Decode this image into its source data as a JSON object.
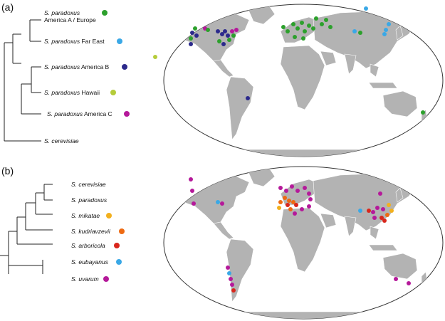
{
  "panel_a": {
    "label": "(a)",
    "taxa": [
      {
        "species": "S. paradoxus",
        "region": "America A / Europe",
        "color": "#2ca02c"
      },
      {
        "species": "S. paradoxus",
        "region": "Far East",
        "color": "#3aa8e6"
      },
      {
        "species": "S. paradoxus",
        "region": "America B",
        "color": "#2c2a8c"
      },
      {
        "species": "S. paradoxus",
        "region": "Hawaii",
        "color": "#b5cc3a"
      },
      {
        "species": "S. paradoxus",
        "region": "America C",
        "color": "#b5199a"
      },
      {
        "species": "S. cerevisiae",
        "region": "",
        "color": ""
      }
    ]
  },
  "panel_b": {
    "label": "(b)",
    "taxa": [
      {
        "species": "S. cerevisiae",
        "color": ""
      },
      {
        "species": "S. paradoxus",
        "color": ""
      },
      {
        "species": "S. mikatae",
        "color": "#f2b01e"
      },
      {
        "species": "S. kudriavzevii",
        "color": "#ee6a12"
      },
      {
        "species": "S. arboricola",
        "color": "#d9261c"
      },
      {
        "species": "S. eubayanus",
        "color": "#3aa8e6"
      },
      {
        "species": "S. uvarum",
        "color": "#b5199a"
      }
    ]
  }
}
